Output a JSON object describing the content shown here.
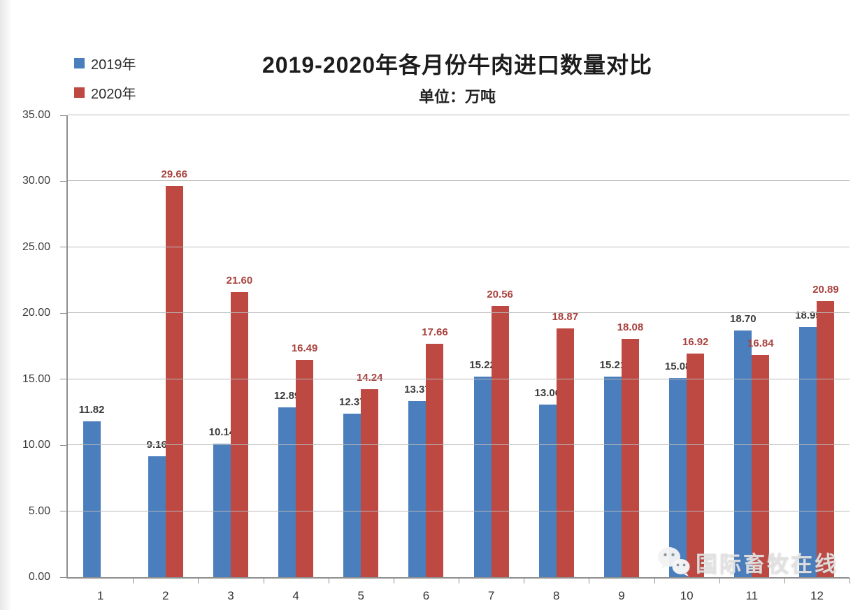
{
  "title": "2019-2020年各月份牛肉进口数量对比",
  "subtitle": "单位：万吨",
  "legend": {
    "items": [
      {
        "key": "2019",
        "label": "2019年",
        "color": "#4a7ebd"
      },
      {
        "key": "2020",
        "label": "2020年",
        "color": "#be4943"
      }
    ]
  },
  "watermark": {
    "icon": "wechat-icon",
    "text": "国际畜牧在线"
  },
  "colors": {
    "bar_2019": "#4a7ebd",
    "bar_2020": "#be4943",
    "label_2019": "#3b3b3b",
    "label_2020": "#a8423e",
    "gridline": "#b9b9b9",
    "axis": "#8f8f8f"
  },
  "chart_data": {
    "type": "bar",
    "title": "2019-2020年各月份牛肉进口数量对比",
    "subtitle": "单位：万吨",
    "xlabel": "",
    "ylabel": "万吨",
    "categories": [
      "1",
      "2",
      "3",
      "4",
      "5",
      "6",
      "7",
      "8",
      "9",
      "10",
      "11",
      "12"
    ],
    "series": [
      {
        "key": "2019",
        "name": "2019年",
        "color": "#4a7ebd",
        "label_color": "#3b3b3b",
        "values": [
          11.82,
          9.16,
          10.14,
          12.89,
          12.37,
          13.37,
          15.22,
          13.06,
          15.21,
          15.08,
          18.7,
          18.95
        ]
      },
      {
        "key": "2020",
        "name": "2020年",
        "color": "#be4943",
        "label_color": "#a8423e",
        "values": [
          null,
          29.66,
          21.6,
          16.49,
          14.24,
          17.66,
          20.56,
          18.87,
          18.08,
          16.92,
          16.84,
          20.89
        ]
      }
    ],
    "ylim": [
      0,
      35
    ],
    "yticks": [
      0,
      5,
      10,
      15,
      20,
      25,
      30,
      35
    ],
    "ytick_format": "0.00",
    "grid": true,
    "legend_position": "top-left",
    "value_labels": true
  }
}
